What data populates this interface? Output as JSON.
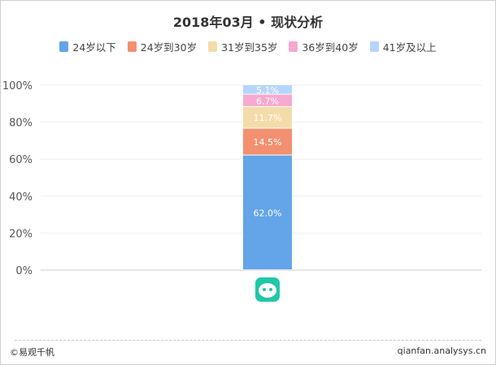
{
  "title": "2018年03月 • 现状分析",
  "chart_data": {
    "type": "bar",
    "stacked": true,
    "percent": true,
    "categories": [
      ""
    ],
    "series": [
      {
        "name": "24岁以下",
        "color": "#63a5e8",
        "values": [
          62.0
        ],
        "label": "62.0%"
      },
      {
        "name": "24岁到30岁",
        "color": "#f29070",
        "values": [
          14.5
        ],
        "label": "14.5%"
      },
      {
        "name": "31岁到35岁",
        "color": "#f3dcaa",
        "values": [
          11.7
        ],
        "label": "11.7%"
      },
      {
        "name": "36岁到40岁",
        "color": "#f7a9cf",
        "values": [
          6.7
        ],
        "label": "6.7%"
      },
      {
        "name": "41岁及以上",
        "color": "#b5d5fb",
        "values": [
          5.1
        ],
        "label": "5.1%"
      }
    ],
    "yticks": [
      "0%",
      "20%",
      "40%",
      "60%",
      "80%",
      "100%"
    ],
    "ylim": [
      0,
      100
    ],
    "grid": true,
    "legend": "top",
    "app_icon": "chat-face-app-icon",
    "app_icon_color": "#1ec8a8"
  },
  "footer": {
    "left": "©易观千帆",
    "right": "qianfan.analysys.cn"
  }
}
